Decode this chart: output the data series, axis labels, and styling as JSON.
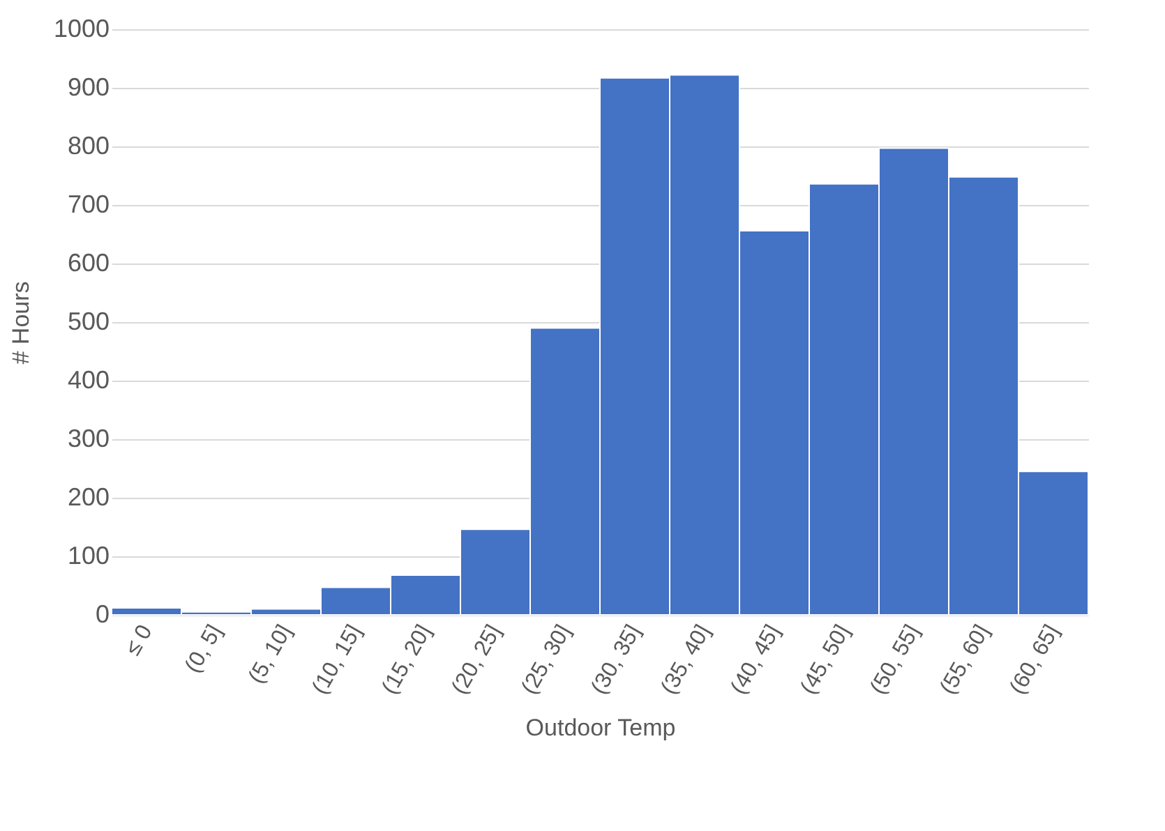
{
  "chart_data": {
    "type": "bar",
    "xlabel": "Outdoor Temp",
    "ylabel": "# Hours",
    "categories": [
      "≤ 0",
      "(0, 5]",
      "(5, 10]",
      "(10, 15]",
      "(15, 20]",
      "(20, 25]",
      "(25, 30]",
      "(30, 35]",
      "(35, 40]",
      "(40, 45]",
      "(45, 50]",
      "(50, 55]",
      "(55, 60]",
      "(60, 65]"
    ],
    "values": [
      12,
      5,
      10,
      47,
      68,
      146,
      490,
      917,
      922,
      656,
      736,
      797,
      748,
      245
    ],
    "color": "#4472c4",
    "ylim": [
      0,
      1000
    ],
    "yticks": [
      0,
      100,
      200,
      300,
      400,
      500,
      600,
      700,
      800,
      900,
      1000
    ],
    "grid": "y"
  }
}
